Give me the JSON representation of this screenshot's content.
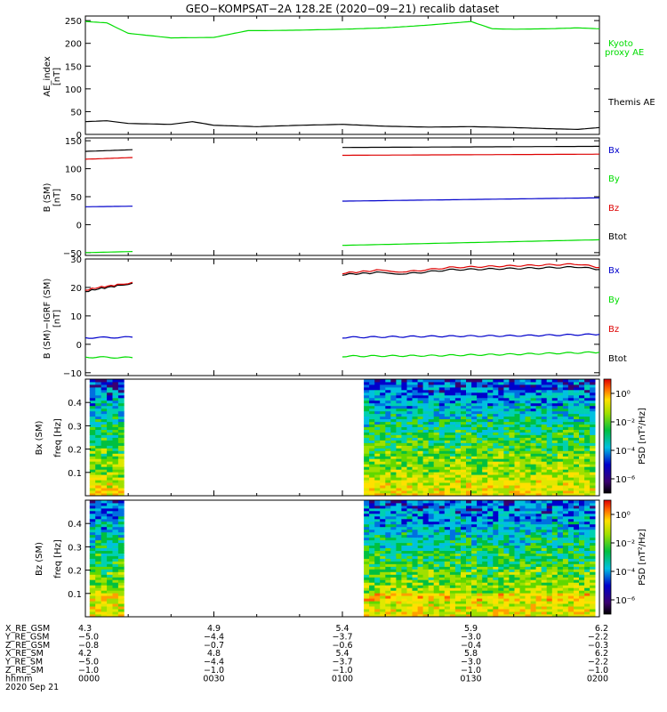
{
  "title": "GEO−KOMPSAT−2A 128.2E (2020−09−21) recalib dataset",
  "colors": {
    "black": "#000000",
    "green": "#00dd00",
    "red": "#dd0000",
    "blue": "#0000cc"
  },
  "panels": {
    "ae": {
      "ylabel": [
        "AE_index",
        "[nT]"
      ],
      "yticks": [
        "0",
        "50",
        "100",
        "150",
        "200",
        "250"
      ],
      "legend": [
        {
          "text": "Kyoto",
          "color": "#00dd00"
        },
        {
          "text": "proxy AE",
          "color": "#00dd00"
        },
        {
          "text": "Themis AE",
          "color": "#000000"
        }
      ]
    },
    "b": {
      "ylabel": [
        "B (SM)",
        "[nT]"
      ],
      "yticks": [
        "−50",
        "0",
        "50",
        "100",
        "150"
      ],
      "legend": [
        {
          "text": "Bx",
          "color": "#0000cc"
        },
        {
          "text": "By",
          "color": "#00dd00"
        },
        {
          "text": "Bz",
          "color": "#dd0000"
        },
        {
          "text": "Btot",
          "color": "#000000"
        }
      ]
    },
    "db": {
      "ylabel": [
        "B (SM)−IGRF (SM)",
        "[nT]"
      ],
      "yticks": [
        "−10",
        "0",
        "10",
        "20",
        "30"
      ],
      "legend": [
        {
          "text": "Bx",
          "color": "#0000cc"
        },
        {
          "text": "By",
          "color": "#00dd00"
        },
        {
          "text": "Bz",
          "color": "#dd0000"
        },
        {
          "text": "Btot",
          "color": "#000000"
        }
      ]
    },
    "specx": {
      "ylabel": [
        "Bx (SM)",
        "freq [Hz]"
      ],
      "yticks": [
        "0.1",
        "0.2",
        "0.3",
        "0.4"
      ],
      "cbar_label": "PSD [nT²/Hz]",
      "cbar_ticks": [
        "10⁰",
        "10⁻²",
        "10⁻⁴",
        "10⁻⁶"
      ]
    },
    "specz": {
      "ylabel": [
        "Bz (SM)",
        "freq [Hz]"
      ],
      "yticks": [
        "0.1",
        "0.2",
        "0.3",
        "0.4"
      ],
      "cbar_label": "PSD [nT²/Hz]",
      "cbar_ticks": [
        "10⁰",
        "10⁻²",
        "10⁻⁴",
        "10⁻⁶"
      ]
    }
  },
  "ephemeris": {
    "row_labels": [
      "X_RE_GSM",
      "Y_RE_GSM",
      "Z_RE_GSM",
      "X_RE_SM",
      "Y_RE_SM",
      "Z_RE_SM",
      "hhmm",
      "2020 Sep 21"
    ],
    "columns": [
      [
        "4.3",
        "−5.0",
        "−0.8",
        "4.2",
        "−5.0",
        "−1.0",
        "0000"
      ],
      [
        "4.9",
        "−4.4",
        "−0.7",
        "4.8",
        "−4.4",
        "−1.0",
        "0030"
      ],
      [
        "5.4",
        "−3.7",
        "−0.6",
        "5.4",
        "−3.7",
        "−1.0",
        "0100"
      ],
      [
        "5.9",
        "−3.0",
        "−0.4",
        "5.8",
        "−3.0",
        "−1.0",
        "0130"
      ],
      [
        "6.2",
        "−2.2",
        "−0.3",
        "6.2",
        "−2.2",
        "−1.0",
        "0200"
      ]
    ]
  },
  "chart_data": [
    {
      "type": "line",
      "ylim": [
        0,
        260
      ],
      "x_minutes_range": [
        0,
        120
      ],
      "series": [
        {
          "name": "Kyoto proxy AE",
          "color": "#00dd00",
          "x": [
            0,
            5,
            10,
            20,
            30,
            38,
            42,
            50,
            60,
            70,
            80,
            90,
            95,
            100,
            108,
            115,
            120
          ],
          "y": [
            248,
            245,
            222,
            212,
            213,
            228,
            228,
            229,
            231,
            234,
            240,
            248,
            232,
            231,
            232,
            234,
            232
          ]
        },
        {
          "name": "Themis AE",
          "color": "#000000",
          "x": [
            0,
            5,
            10,
            15,
            20,
            25,
            30,
            40,
            50,
            60,
            70,
            80,
            90,
            100,
            110,
            115,
            120
          ],
          "y": [
            28,
            30,
            24,
            23,
            22,
            28,
            20,
            17,
            20,
            22,
            18,
            16,
            17,
            15,
            12,
            11,
            15
          ]
        }
      ]
    },
    {
      "type": "line",
      "ylim": [
        -55,
        155
      ],
      "series": [
        {
          "name": "Btot",
          "color": "#000000",
          "segments": [
            {
              "x": [
                0,
                11
              ],
              "y": [
                131,
                134
              ]
            },
            {
              "x": [
                60,
                120
              ],
              "y": [
                138,
                140
              ]
            }
          ]
        },
        {
          "name": "Bz",
          "color": "#dd0000",
          "segments": [
            {
              "x": [
                0,
                11
              ],
              "y": [
                117,
                120
              ]
            },
            {
              "x": [
                60,
                120
              ],
              "y": [
                124,
                126
              ]
            }
          ]
        },
        {
          "name": "Bx",
          "color": "#0000cc",
          "segments": [
            {
              "x": [
                0,
                11
              ],
              "y": [
                32,
                33
              ]
            },
            {
              "x": [
                60,
                120
              ],
              "y": [
                42,
                48
              ]
            }
          ]
        },
        {
          "name": "By",
          "color": "#00dd00",
          "segments": [
            {
              "x": [
                0,
                11
              ],
              "y": [
                -50,
                -48
              ]
            },
            {
              "x": [
                60,
                120
              ],
              "y": [
                -37,
                -27
              ]
            }
          ]
        }
      ]
    },
    {
      "type": "line",
      "ylim": [
        -11,
        30
      ],
      "series": [
        {
          "name": "Btot",
          "color": "#000000",
          "segments": [
            {
              "x": [
                0,
                3,
                6,
                9,
                11
              ],
              "y": [
                18.5,
                19.5,
                20.2,
                21,
                21.5
              ]
            },
            {
              "x": [
                60,
                68,
                75,
                85,
                95,
                105,
                115,
                120
              ],
              "y": [
                24.5,
                25.2,
                24.8,
                26.2,
                26.5,
                26.8,
                27.2,
                26.3
              ]
            }
          ]
        },
        {
          "name": "Bz",
          "color": "#dd0000",
          "segments": [
            {
              "x": [
                0,
                3,
                6,
                9,
                11
              ],
              "y": [
                19,
                20,
                20.6,
                21.3,
                21.8
              ]
            },
            {
              "x": [
                60,
                68,
                75,
                85,
                95,
                105,
                115,
                120
              ],
              "y": [
                25,
                26,
                25.5,
                27,
                27.4,
                27.8,
                28.2,
                27
              ]
            }
          ]
        },
        {
          "name": "Bx",
          "color": "#0000cc",
          "segments": [
            {
              "x": [
                0,
                11
              ],
              "y": [
                2.3,
                2.5
              ]
            },
            {
              "x": [
                60,
                80,
                100,
                120
              ],
              "y": [
                2.4,
                2.8,
                3.0,
                3.5
              ]
            }
          ]
        },
        {
          "name": "By",
          "color": "#00dd00",
          "segments": [
            {
              "x": [
                0,
                11
              ],
              "y": [
                -4.5,
                -4.7
              ]
            },
            {
              "x": [
                60,
                80,
                100,
                120
              ],
              "y": [
                -4.2,
                -4.0,
                -3.5,
                -2.8
              ]
            }
          ]
        }
      ]
    },
    {
      "type": "heatmap",
      "component": "Bx",
      "freq_range": [
        0,
        0.5
      ],
      "data_windows_minutes": [
        [
          1,
          9
        ],
        [
          65,
          119
        ]
      ],
      "psd_range_log10": [
        -7,
        1
      ]
    },
    {
      "type": "heatmap",
      "component": "Bz",
      "freq_range": [
        0,
        0.5
      ],
      "data_windows_minutes": [
        [
          1,
          9
        ],
        [
          65,
          119
        ]
      ],
      "psd_range_log10": [
        -7,
        1
      ]
    }
  ]
}
